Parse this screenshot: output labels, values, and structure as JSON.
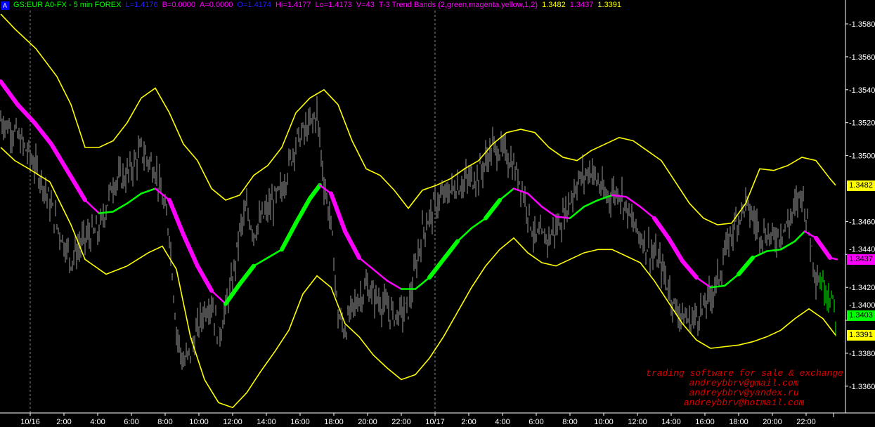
{
  "header": {
    "logo": "A",
    "symbol": "GS:EUR A0-FX - 5 min  FOREX",
    "last": "L=1.4176",
    "bid": "B=0.0000",
    "ask": "A=0.0000",
    "open": "O=1.4174",
    "high": "Hi=1.4177",
    "low": "Lo=1.4173",
    "volume": "V=43",
    "indicator": "T-3 Trend Bands (2,green,magenta,yellow,1,2)",
    "ind_upper": "1.3482",
    "ind_mid": "1.3437",
    "ind_lower": "1.3391"
  },
  "colors": {
    "background": "#000000",
    "price": "#9a9a9a",
    "up": "#00ff00",
    "down": "#ff00ff",
    "band": "#ffff00",
    "axis": "#ffffff",
    "watermark": "#e00000"
  },
  "watermark": [
    "trading software for sale & exchange",
    "andreybbrv@gmail.com",
    "andreybbrv@yandex.ru",
    "andreybbrv@hotmail.com"
  ],
  "price_tags": {
    "upper": "1.3482",
    "mid": "1.3437",
    "last": "1.3403",
    "lower": "1.3391"
  },
  "chart_data": {
    "type": "line",
    "bar_interval": "5 min",
    "ylim": [
      1.3345,
      1.359
    ],
    "y_ticks": [
      "1.3580",
      "1.3560",
      "1.3540",
      "1.3520",
      "1.3500",
      "1.3460",
      "1.3440",
      "1.3420",
      "1.3400",
      "1.3380",
      "1.3360"
    ],
    "x_ticks": [
      {
        "bar": 21,
        "label": "10/16",
        "date_separator": true
      },
      {
        "bar": 45,
        "label": "2:00"
      },
      {
        "bar": 69,
        "label": "4:00"
      },
      {
        "bar": 93,
        "label": "6:00"
      },
      {
        "bar": 117,
        "label": "8:00"
      },
      {
        "bar": 141,
        "label": "10:00"
      },
      {
        "bar": 165,
        "label": "12:00"
      },
      {
        "bar": 189,
        "label": "14:00"
      },
      {
        "bar": 213,
        "label": "16:00"
      },
      {
        "bar": 237,
        "label": "18:00"
      },
      {
        "bar": 261,
        "label": "20:00"
      },
      {
        "bar": 285,
        "label": "22:00"
      },
      {
        "bar": 309,
        "label": "10/17",
        "date_separator": true
      },
      {
        "bar": 333,
        "label": "2:00"
      },
      {
        "bar": 357,
        "label": "4:00"
      },
      {
        "bar": 381,
        "label": "6:00"
      },
      {
        "bar": 405,
        "label": "8:00"
      },
      {
        "bar": 429,
        "label": "10:00"
      },
      {
        "bar": 453,
        "label": "12:00"
      },
      {
        "bar": 477,
        "label": "14:00"
      },
      {
        "bar": 501,
        "label": "16:00"
      },
      {
        "bar": 525,
        "label": "18:00"
      },
      {
        "bar": 549,
        "label": "20:00"
      },
      {
        "bar": 573,
        "label": "22:00"
      }
    ],
    "price_path": {
      "bars": [
        0,
        10,
        20,
        30,
        40,
        50,
        60,
        70,
        80,
        90,
        100,
        110,
        120,
        125,
        130,
        135,
        140,
        145,
        150,
        155,
        160,
        165,
        170,
        175,
        180,
        190,
        200,
        210,
        220,
        225,
        230,
        235,
        240,
        245,
        250,
        260,
        270,
        280,
        290,
        300,
        310,
        320,
        330,
        340,
        350,
        360,
        370,
        380,
        390,
        400,
        410,
        420,
        430,
        440,
        450,
        460,
        470,
        480,
        490,
        500,
        510,
        520,
        530,
        540,
        550,
        560,
        570,
        580,
        590,
        594
      ],
      "close": [
        1.3522,
        1.3514,
        1.3501,
        1.3484,
        1.3458,
        1.3437,
        1.345,
        1.3454,
        1.3484,
        1.3488,
        1.3503,
        1.3492,
        1.3454,
        1.3394,
        1.3373,
        1.3381,
        1.3394,
        1.3407,
        1.3411,
        1.339,
        1.3407,
        1.3424,
        1.3454,
        1.3467,
        1.3454,
        1.3467,
        1.3479,
        1.3509,
        1.3518,
        1.3526,
        1.3484,
        1.3458,
        1.3403,
        1.3394,
        1.3407,
        1.342,
        1.3411,
        1.3403,
        1.3407,
        1.3454,
        1.3471,
        1.3479,
        1.3484,
        1.3488,
        1.3505,
        1.3501,
        1.3484,
        1.345,
        1.345,
        1.3462,
        1.3484,
        1.3492,
        1.3475,
        1.3479,
        1.3458,
        1.3445,
        1.3433,
        1.3407,
        1.3399,
        1.3407,
        1.3424,
        1.3454,
        1.3471,
        1.3454,
        1.345,
        1.3458,
        1.3479,
        1.3428,
        1.3416,
        1.3403
      ]
    },
    "series": [
      {
        "name": "T-3 Trend Bands mid",
        "bars": [
          0,
          12,
          24,
          36,
          48,
          60,
          70,
          80,
          90,
          100,
          110,
          120,
          130,
          140,
          150,
          160,
          170,
          180,
          190,
          200,
          210,
          220,
          227,
          235,
          245,
          255,
          265,
          275,
          285,
          295,
          305,
          315,
          325,
          335,
          345,
          355,
          365,
          375,
          385,
          395,
          405,
          415,
          425,
          435,
          445,
          455,
          465,
          475,
          485,
          495,
          505,
          515,
          525,
          535,
          545,
          555,
          565,
          572,
          580,
          590,
          595
        ],
        "values": [
          1.3545,
          1.3531,
          1.352,
          1.3507,
          1.349,
          1.3473,
          1.3465,
          1.3466,
          1.3471,
          1.3477,
          1.348,
          1.3473,
          1.3452,
          1.3433,
          1.3418,
          1.341,
          1.3422,
          1.3433,
          1.3438,
          1.3443,
          1.3459,
          1.3474,
          1.3482,
          1.3477,
          1.3454,
          1.3438,
          1.3431,
          1.3424,
          1.3419,
          1.3419,
          1.3426,
          1.3437,
          1.3448,
          1.3456,
          1.3462,
          1.3473,
          1.348,
          1.3477,
          1.3469,
          1.3463,
          1.3462,
          1.3469,
          1.3473,
          1.3476,
          1.3475,
          1.3469,
          1.3462,
          1.345,
          1.3436,
          1.3426,
          1.342,
          1.3421,
          1.3428,
          1.3438,
          1.3442,
          1.3443,
          1.3448,
          1.3454,
          1.345,
          1.3438,
          1.3437
        ]
      },
      {
        "name": "T-3 Trend Bands upper",
        "bars": [
          0,
          10,
          25,
          40,
          50,
          60,
          70,
          80,
          90,
          100,
          110,
          120,
          130,
          140,
          150,
          160,
          170,
          180,
          190,
          200,
          210,
          220,
          230,
          240,
          250,
          260,
          270,
          280,
          290,
          300,
          310,
          320,
          330,
          340,
          350,
          360,
          370,
          380,
          390,
          400,
          410,
          420,
          430,
          440,
          450,
          460,
          470,
          480,
          490,
          500,
          510,
          520,
          530,
          540,
          550,
          560,
          570,
          580,
          590,
          594
        ],
        "values": [
          1.3586,
          1.3577,
          1.3565,
          1.3548,
          1.3531,
          1.3505,
          1.3505,
          1.3509,
          1.352,
          1.3535,
          1.3541,
          1.3526,
          1.3507,
          1.3497,
          1.348,
          1.3473,
          1.3476,
          1.3488,
          1.3494,
          1.3505,
          1.3526,
          1.3535,
          1.354,
          1.3531,
          1.3509,
          1.3492,
          1.3488,
          1.3479,
          1.3468,
          1.3479,
          1.3482,
          1.3486,
          1.3492,
          1.3497,
          1.3507,
          1.3514,
          1.3516,
          1.3514,
          1.3505,
          1.3499,
          1.3497,
          1.3503,
          1.3507,
          1.3511,
          1.3509,
          1.3503,
          1.3497,
          1.3484,
          1.3471,
          1.3462,
          1.3458,
          1.3459,
          1.3471,
          1.3492,
          1.3491,
          1.3494,
          1.3499,
          1.3497,
          1.3486,
          1.3482
        ]
      },
      {
        "name": "T-3 Trend Bands lower",
        "bars": [
          0,
          10,
          20,
          35,
          50,
          60,
          75,
          90,
          105,
          115,
          125,
          135,
          145,
          155,
          165,
          175,
          185,
          195,
          205,
          215,
          225,
          235,
          245,
          255,
          265,
          275,
          285,
          295,
          305,
          315,
          325,
          335,
          345,
          355,
          365,
          375,
          385,
          395,
          405,
          415,
          425,
          435,
          445,
          455,
          465,
          475,
          485,
          495,
          505,
          515,
          525,
          535,
          545,
          555,
          565,
          575,
          585,
          594
        ],
        "values": [
          1.3505,
          1.3497,
          1.3492,
          1.3484,
          1.3458,
          1.3437,
          1.3428,
          1.3433,
          1.3441,
          1.3445,
          1.3431,
          1.339,
          1.3364,
          1.335,
          1.3347,
          1.3356,
          1.3369,
          1.3381,
          1.3394,
          1.3416,
          1.3427,
          1.342,
          1.3398,
          1.339,
          1.3379,
          1.3371,
          1.3364,
          1.3367,
          1.3377,
          1.339,
          1.3405,
          1.342,
          1.3433,
          1.3443,
          1.345,
          1.3441,
          1.3435,
          1.3433,
          1.3437,
          1.3441,
          1.3443,
          1.3443,
          1.3439,
          1.3435,
          1.3424,
          1.3411,
          1.3398,
          1.3388,
          1.3383,
          1.3384,
          1.3385,
          1.3387,
          1.339,
          1.3394,
          1.3401,
          1.3407,
          1.3401,
          1.3391
        ]
      }
    ]
  }
}
